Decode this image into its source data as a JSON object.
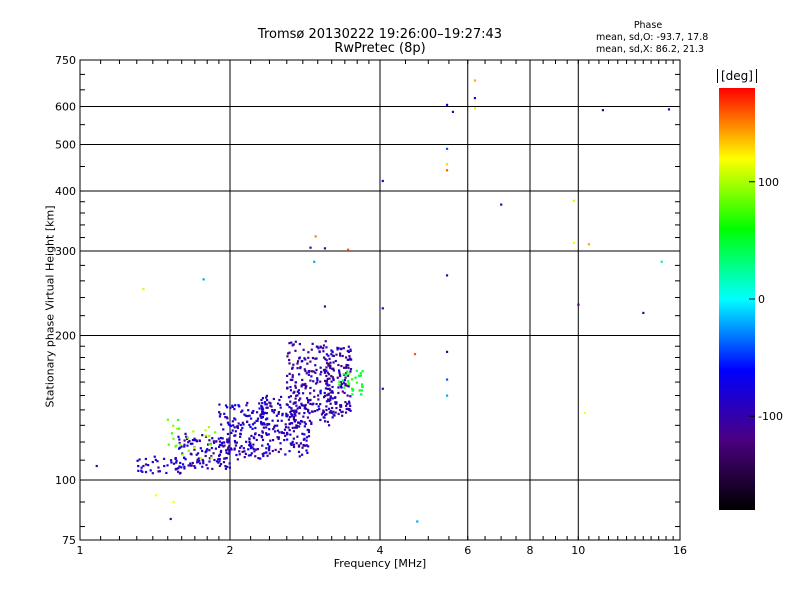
{
  "header": {
    "title_line1": "Tromsø 20130222 19:26:00–19:27:43",
    "title_line2": "RwPretec (8p)"
  },
  "phase_box": {
    "title": "Phase",
    "line1": "mean, sd,O: -93.7, 17.8",
    "line2": "mean, sd,X:  86.2, 21.3"
  },
  "colorbar": {
    "unit": "[deg]",
    "tick_labels": [
      "100",
      "0",
      "-100"
    ],
    "tick_values": [
      100,
      0,
      -100
    ],
    "range": [
      -180,
      180
    ],
    "colors": [
      "#000000",
      "#4b0082",
      "#0000ff",
      "#00ffff",
      "#00ff00",
      "#ffff00",
      "#ff0000"
    ]
  },
  "chart_data": {
    "type": "scatter",
    "title": "Tromsø 20130222 19:26:00–19:27:43",
    "subtitle": "RwPretec (8p)",
    "xlabel": "Frequency [MHz]",
    "ylabel": "Stationary phase Virtual Height [km]",
    "x_scale": "log",
    "y_scale": "log",
    "xlim": [
      1,
      16
    ],
    "ylim": [
      75,
      750
    ],
    "x_ticks": [
      1,
      2,
      4,
      6,
      8,
      10,
      16
    ],
    "y_ticks": [
      75,
      100,
      200,
      300,
      400,
      500,
      600,
      750
    ],
    "grid": true,
    "color_by": "phase [deg]",
    "clusters": [
      {
        "f_range": [
          1.3,
          1.6
        ],
        "h_range": [
          103,
          112
        ],
        "phase": -90,
        "n": 40
      },
      {
        "f_range": [
          1.55,
          2.0
        ],
        "h_range": [
          105,
          125
        ],
        "phase": -95,
        "n": 120
      },
      {
        "f_range": [
          1.9,
          2.4
        ],
        "h_range": [
          110,
          145
        ],
        "phase": -90,
        "n": 160
      },
      {
        "f_range": [
          2.3,
          2.9
        ],
        "h_range": [
          112,
          150
        ],
        "phase": -95,
        "n": 180
      },
      {
        "f_range": [
          2.6,
          3.2
        ],
        "h_range": [
          130,
          195
        ],
        "phase": -100,
        "n": 200
      },
      {
        "f_range": [
          3.1,
          3.5
        ],
        "h_range": [
          135,
          190
        ],
        "phase": -100,
        "n": 140
      },
      {
        "f_range": [
          3.3,
          3.7
        ],
        "h_range": [
          150,
          170
        ],
        "phase": 60,
        "n": 30
      },
      {
        "f_range": [
          1.5,
          1.9
        ],
        "h_range": [
          110,
          135
        ],
        "phase": 90,
        "n": 25
      }
    ],
    "points": [
      {
        "f": 1.08,
        "h": 107,
        "phase": -110
      },
      {
        "f": 1.34,
        "h": 250,
        "phase": 110
      },
      {
        "f": 1.42,
        "h": 93,
        "phase": 120
      },
      {
        "f": 1.52,
        "h": 83,
        "phase": -120
      },
      {
        "f": 1.54,
        "h": 90,
        "phase": 120
      },
      {
        "f": 1.77,
        "h": 262,
        "phase": -20
      },
      {
        "f": 2.97,
        "h": 322,
        "phase": 150
      },
      {
        "f": 2.9,
        "h": 305,
        "phase": -100
      },
      {
        "f": 3.1,
        "h": 304,
        "phase": -110
      },
      {
        "f": 3.45,
        "h": 302,
        "phase": 160
      },
      {
        "f": 2.95,
        "h": 285,
        "phase": -20
      },
      {
        "f": 3.1,
        "h": 230,
        "phase": -120
      },
      {
        "f": 4.05,
        "h": 420,
        "phase": -80
      },
      {
        "f": 4.05,
        "h": 228,
        "phase": -100
      },
      {
        "f": 4.05,
        "h": 155,
        "phase": -100
      },
      {
        "f": 4.7,
        "h": 183,
        "phase": 160
      },
      {
        "f": 4.75,
        "h": 82,
        "phase": -20
      },
      {
        "f": 5.45,
        "h": 605,
        "phase": -60
      },
      {
        "f": 5.6,
        "h": 585,
        "phase": -100
      },
      {
        "f": 5.45,
        "h": 490,
        "phase": -40
      },
      {
        "f": 5.45,
        "h": 455,
        "phase": 130
      },
      {
        "f": 5.45,
        "h": 442,
        "phase": 160
      },
      {
        "f": 5.45,
        "h": 267,
        "phase": -100
      },
      {
        "f": 5.45,
        "h": 185,
        "phase": -100
      },
      {
        "f": 5.45,
        "h": 162,
        "phase": -40
      },
      {
        "f": 5.45,
        "h": 150,
        "phase": -20
      },
      {
        "f": 6.2,
        "h": 680,
        "phase": 140
      },
      {
        "f": 6.2,
        "h": 625,
        "phase": -100
      },
      {
        "f": 6.2,
        "h": 595,
        "phase": 110
      },
      {
        "f": 7.0,
        "h": 375,
        "phase": -110
      },
      {
        "f": 9.8,
        "h": 382,
        "phase": 110
      },
      {
        "f": 9.8,
        "h": 312,
        "phase": 120
      },
      {
        "f": 10.5,
        "h": 310,
        "phase": 140
      },
      {
        "f": 10.3,
        "h": 138,
        "phase": 120
      },
      {
        "f": 10.0,
        "h": 232,
        "phase": -120
      },
      {
        "f": 11.2,
        "h": 590,
        "phase": -110
      },
      {
        "f": 13.5,
        "h": 223,
        "phase": -110
      },
      {
        "f": 14.7,
        "h": 285,
        "phase": 30
      },
      {
        "f": 15.2,
        "h": 592,
        "phase": -100
      }
    ]
  }
}
